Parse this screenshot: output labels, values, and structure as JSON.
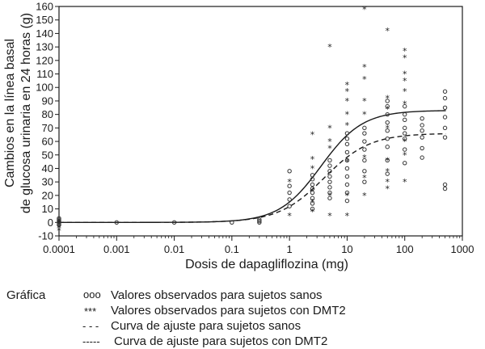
{
  "chart_data": {
    "type": "scatter",
    "title": "",
    "xlabel": "Dosis de dapagliflozina (mg)",
    "ylabel_lines": [
      "Cambios en la línea basal",
      "de glucosa urinaria en 24 horas (g)"
    ],
    "xscale": "log",
    "xlim": [
      0.0001,
      1000
    ],
    "ylim": [
      -10,
      160
    ],
    "x_ticks": [
      {
        "value": 0.0001,
        "label": "0.0001"
      },
      {
        "value": 0.001,
        "label": "0.001"
      },
      {
        "value": 0.01,
        "label": "0.01"
      },
      {
        "value": 0.1,
        "label": "0.1"
      },
      {
        "value": 1,
        "label": "1"
      },
      {
        "value": 10,
        "label": "10"
      },
      {
        "value": 100,
        "label": "100"
      },
      {
        "value": 1000,
        "label": "1000"
      }
    ],
    "y_ticks": [
      -10,
      0,
      10,
      20,
      30,
      40,
      50,
      60,
      70,
      80,
      90,
      100,
      110,
      120,
      130,
      140,
      150,
      160
    ],
    "legend": {
      "title": "Gráfica",
      "placement": "bottom",
      "items": [
        {
          "marker": "ooo",
          "label": "Valores observados para sujetos sanos"
        },
        {
          "marker": "***",
          "label": "Valores observados para sujetos con DMT2"
        },
        {
          "marker": "- - -",
          "label": "Curva de ajuste para sujetos sanos"
        },
        {
          "marker": "-----",
          "label": "Curva de ajuste para sujetos con DMT2"
        }
      ]
    },
    "series": [
      {
        "kind": "points",
        "marker": "o",
        "points": [
          [
            0.0001,
            -2
          ],
          [
            0.0001,
            0
          ],
          [
            0.0001,
            1
          ],
          [
            0.0001,
            2
          ],
          [
            0.0001,
            -1
          ],
          [
            0.0001,
            3
          ],
          [
            0.001,
            0
          ],
          [
            0.01,
            0
          ],
          [
            0.1,
            0
          ],
          [
            0.3,
            0
          ],
          [
            0.3,
            1
          ],
          [
            0.3,
            2
          ],
          [
            1,
            12
          ],
          [
            1,
            17
          ],
          [
            1,
            22
          ],
          [
            1,
            27
          ],
          [
            1,
            38
          ],
          [
            2.5,
            10
          ],
          [
            2.5,
            14
          ],
          [
            2.5,
            18
          ],
          [
            2.5,
            22
          ],
          [
            2.5,
            25
          ],
          [
            2.5,
            28
          ],
          [
            2.5,
            32
          ],
          [
            2.5,
            35
          ],
          [
            5,
            18
          ],
          [
            5,
            22
          ],
          [
            5,
            26
          ],
          [
            5,
            30
          ],
          [
            5,
            34
          ],
          [
            5,
            38
          ],
          [
            5,
            42
          ],
          [
            5,
            46
          ],
          [
            10,
            16
          ],
          [
            10,
            22
          ],
          [
            10,
            28
          ],
          [
            10,
            34
          ],
          [
            10,
            40
          ],
          [
            10,
            46
          ],
          [
            10,
            52
          ],
          [
            10,
            58
          ],
          [
            10,
            62
          ],
          [
            10,
            66
          ],
          [
            20,
            30
          ],
          [
            20,
            38
          ],
          [
            20,
            46
          ],
          [
            20,
            54
          ],
          [
            20,
            60
          ],
          [
            20,
            66
          ],
          [
            20,
            70
          ],
          [
            50,
            36
          ],
          [
            50,
            46
          ],
          [
            50,
            56
          ],
          [
            50,
            62
          ],
          [
            50,
            68
          ],
          [
            50,
            74
          ],
          [
            50,
            80
          ],
          [
            50,
            86
          ],
          [
            50,
            90
          ],
          [
            100,
            44
          ],
          [
            100,
            54
          ],
          [
            100,
            62
          ],
          [
            100,
            66
          ],
          [
            100,
            70
          ],
          [
            100,
            76
          ],
          [
            100,
            80
          ],
          [
            100,
            86
          ],
          [
            200,
            48
          ],
          [
            200,
            55
          ],
          [
            200,
            63
          ],
          [
            200,
            68
          ],
          [
            200,
            72
          ],
          [
            200,
            77
          ],
          [
            500,
            25
          ],
          [
            500,
            28
          ],
          [
            500,
            63
          ],
          [
            500,
            70
          ],
          [
            500,
            78
          ],
          [
            500,
            85
          ],
          [
            500,
            92
          ],
          [
            500,
            97
          ]
        ]
      },
      {
        "kind": "points",
        "marker": "*",
        "points": [
          [
            0.0001,
            -6
          ],
          [
            0.0001,
            -4
          ],
          [
            0.0001,
            0
          ],
          [
            1,
            5
          ],
          [
            1,
            30
          ],
          [
            2.5,
            8
          ],
          [
            2.5,
            15
          ],
          [
            2.5,
            40
          ],
          [
            2.5,
            47
          ],
          [
            2.5,
            65
          ],
          [
            5,
            5
          ],
          [
            5,
            20
          ],
          [
            5,
            55
          ],
          [
            5,
            60
          ],
          [
            5,
            70
          ],
          [
            5,
            130
          ],
          [
            10,
            5
          ],
          [
            10,
            20
          ],
          [
            10,
            45
          ],
          [
            10,
            72
          ],
          [
            10,
            80
          ],
          [
            10,
            90
          ],
          [
            10,
            97
          ],
          [
            10,
            102
          ],
          [
            20,
            20
          ],
          [
            20,
            33
          ],
          [
            20,
            48
          ],
          [
            20,
            80
          ],
          [
            20,
            90
          ],
          [
            20,
            106
          ],
          [
            20,
            115
          ],
          [
            20,
            158
          ],
          [
            50,
            25
          ],
          [
            50,
            30
          ],
          [
            50,
            38
          ],
          [
            50,
            46
          ],
          [
            50,
            70
          ],
          [
            50,
            84
          ],
          [
            50,
            92
          ],
          [
            50,
            142
          ],
          [
            100,
            30
          ],
          [
            100,
            50
          ],
          [
            100,
            60
          ],
          [
            100,
            88
          ],
          [
            100,
            97
          ],
          [
            100,
            105
          ],
          [
            100,
            110
          ],
          [
            100,
            122
          ],
          [
            100,
            127
          ]
        ]
      },
      {
        "kind": "curve",
        "style": "dashed",
        "label": "Curva de ajuste para sujetos sanos",
        "emax": 66,
        "ed50": 4,
        "hill": 1.1
      },
      {
        "kind": "curve",
        "style": "solid",
        "label": "Curva de ajuste para sujetos con DMT2",
        "emax": 83,
        "ed50": 3.5,
        "hill": 1.2
      }
    ]
  }
}
